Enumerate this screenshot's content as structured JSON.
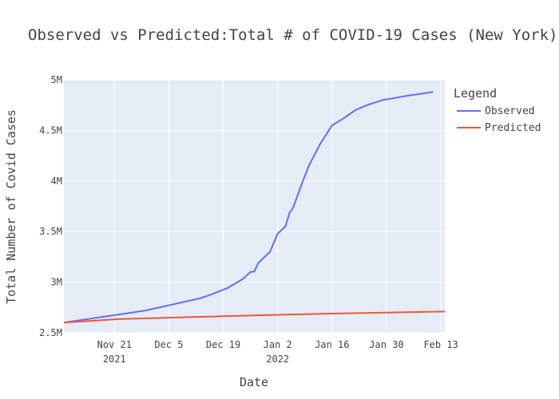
{
  "chart_data": {
    "type": "line",
    "title": "Observed vs Predicted:Total # of COVID-19 Cases (New York)",
    "xlabel": "Date",
    "ylabel": "Total Number of Covid Cases",
    "xlim": [
      "2021-11-08",
      "2022-02-14"
    ],
    "ylim": [
      2500000,
      5000000
    ],
    "grid": true,
    "legend": {
      "title": "Legend",
      "placement": "right"
    },
    "y_ticks": [
      {
        "value": 2500000,
        "label": "2.5M"
      },
      {
        "value": 3000000,
        "label": "3M"
      },
      {
        "value": 3500000,
        "label": "3.5M"
      },
      {
        "value": 4000000,
        "label": "4M"
      },
      {
        "value": 4500000,
        "label": "4.5M"
      },
      {
        "value": 5000000,
        "label": "5M"
      }
    ],
    "x_ticks": [
      {
        "date": "2021-11-21",
        "label": "Nov 21",
        "sublabel": "2021"
      },
      {
        "date": "2021-12-05",
        "label": "Dec 5",
        "sublabel": ""
      },
      {
        "date": "2021-12-19",
        "label": "Dec 19",
        "sublabel": ""
      },
      {
        "date": "2022-01-02",
        "label": "Jan 2",
        "sublabel": "2022"
      },
      {
        "date": "2022-01-16",
        "label": "Jan 16",
        "sublabel": ""
      },
      {
        "date": "2022-01-30",
        "label": "Jan 30",
        "sublabel": ""
      },
      {
        "date": "2022-02-13",
        "label": "Feb 13",
        "sublabel": ""
      }
    ],
    "series": [
      {
        "name": "Observed",
        "color": "#636efa",
        "points": [
          [
            "2021-11-08",
            2600000
          ],
          [
            "2021-11-15",
            2640000
          ],
          [
            "2021-11-22",
            2680000
          ],
          [
            "2021-11-29",
            2720000
          ],
          [
            "2021-12-06",
            2780000
          ],
          [
            "2021-12-13",
            2840000
          ],
          [
            "2021-12-16",
            2880000
          ],
          [
            "2021-12-20",
            2940000
          ],
          [
            "2021-12-24",
            3030000
          ],
          [
            "2021-12-26",
            3100000
          ],
          [
            "2021-12-27",
            3105000
          ],
          [
            "2021-12-28",
            3190000
          ],
          [
            "2021-12-31",
            3300000
          ],
          [
            "2022-01-02",
            3480000
          ],
          [
            "2022-01-04",
            3550000
          ],
          [
            "2022-01-05",
            3680000
          ],
          [
            "2022-01-06",
            3740000
          ],
          [
            "2022-01-08",
            3950000
          ],
          [
            "2022-01-10",
            4150000
          ],
          [
            "2022-01-13",
            4370000
          ],
          [
            "2022-01-16",
            4550000
          ],
          [
            "2022-01-19",
            4620000
          ],
          [
            "2022-01-22",
            4700000
          ],
          [
            "2022-01-25",
            4750000
          ],
          [
            "2022-01-29",
            4800000
          ],
          [
            "2022-02-04",
            4840000
          ],
          [
            "2022-02-11",
            4880000
          ]
        ]
      },
      {
        "name": "Predicted",
        "color": "#ef553b",
        "points": [
          [
            "2021-11-08",
            2600000
          ],
          [
            "2021-11-22",
            2635000
          ],
          [
            "2021-12-06",
            2650000
          ],
          [
            "2021-12-20",
            2665000
          ],
          [
            "2022-01-03",
            2678000
          ],
          [
            "2022-01-17",
            2690000
          ],
          [
            "2022-01-31",
            2700000
          ],
          [
            "2022-02-14",
            2710000
          ]
        ]
      }
    ]
  }
}
